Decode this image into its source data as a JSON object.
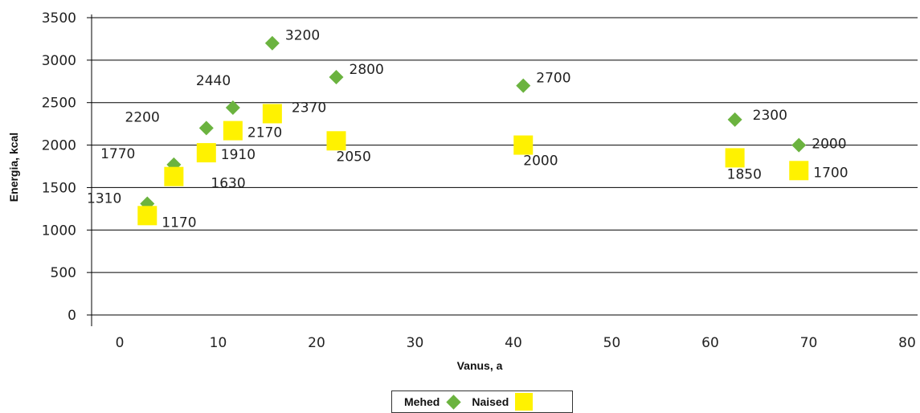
{
  "colors": {
    "mehed": "#6bb33f",
    "naised": "#fff200",
    "grid": "#000000",
    "axis": "#000000"
  },
  "chart_data": {
    "type": "scatter",
    "xlabel": "Vanus, a",
    "ylabel": "Energia, kcal",
    "xlim": [
      0,
      80
    ],
    "ylim": [
      0,
      3500
    ],
    "xticks": [
      0,
      10,
      20,
      30,
      40,
      50,
      60,
      70,
      80
    ],
    "yticks": [
      0,
      500,
      1000,
      1500,
      2000,
      2500,
      3000,
      3500
    ],
    "grid": "horizontal",
    "legend_position": "bottom",
    "series": [
      {
        "name": "Mehed",
        "marker": "diamond",
        "points": [
          {
            "x": 2.8,
            "y": 1310,
            "label": "1310"
          },
          {
            "x": 5.5,
            "y": 1770,
            "label": "1770"
          },
          {
            "x": 8.8,
            "y": 2200,
            "label": "2200"
          },
          {
            "x": 11.5,
            "y": 2440,
            "label": "2440"
          },
          {
            "x": 15.5,
            "y": 3200,
            "label": "3200"
          },
          {
            "x": 22,
            "y": 2800,
            "label": "2800"
          },
          {
            "x": 41,
            "y": 2700,
            "label": "2700"
          },
          {
            "x": 62.5,
            "y": 2300,
            "label": "2300"
          },
          {
            "x": 69,
            "y": 2000,
            "label": "2000"
          }
        ]
      },
      {
        "name": "Naised",
        "marker": "square",
        "points": [
          {
            "x": 2.8,
            "y": 1170,
            "label": "1170"
          },
          {
            "x": 5.5,
            "y": 1630,
            "label": "1630"
          },
          {
            "x": 8.8,
            "y": 1910,
            "label": "1910"
          },
          {
            "x": 11.5,
            "y": 2170,
            "label": "2170"
          },
          {
            "x": 15.5,
            "y": 2370,
            "label": "2370"
          },
          {
            "x": 22,
            "y": 2050,
            "label": "2050"
          },
          {
            "x": 41,
            "y": 2000,
            "label": "2000"
          },
          {
            "x": 62.5,
            "y": 1850,
            "label": "1850"
          },
          {
            "x": 69,
            "y": 1700,
            "label": "1700"
          }
        ]
      }
    ]
  }
}
